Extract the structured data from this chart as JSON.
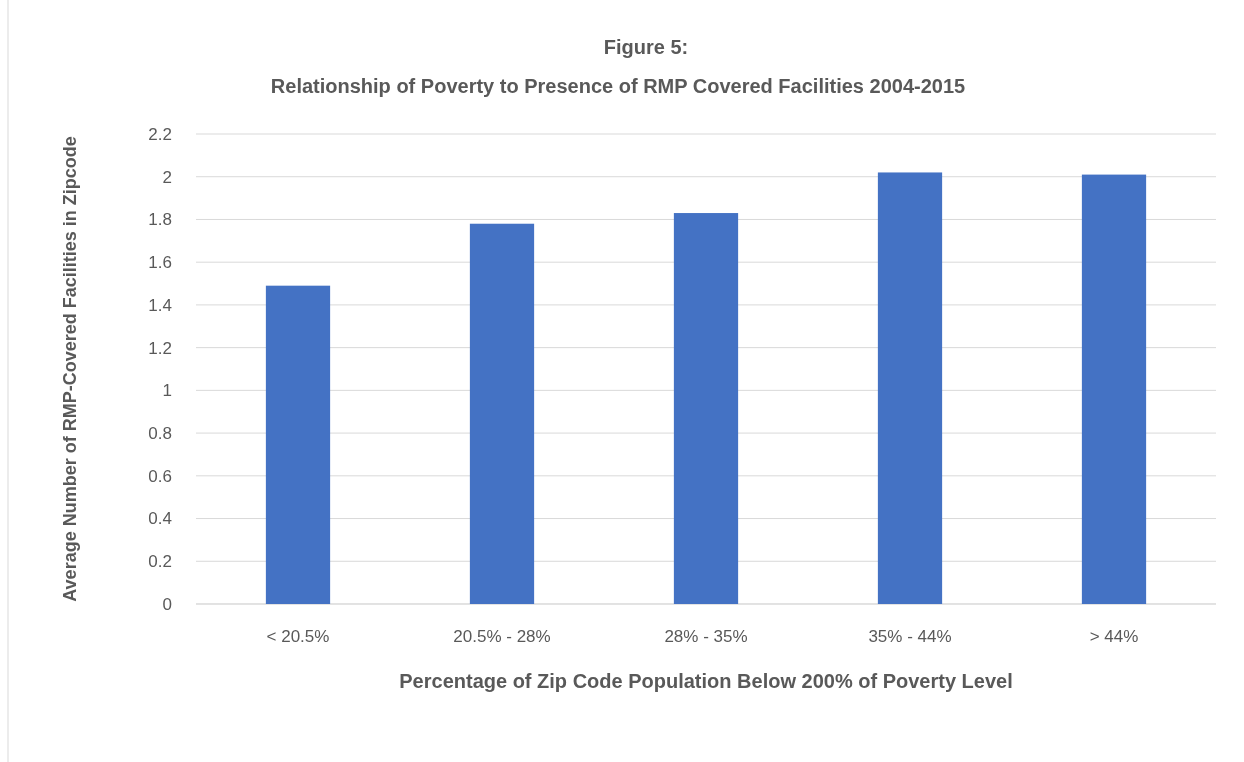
{
  "chart_data": {
    "type": "bar",
    "title": "Figure 5:",
    "subtitle": "Relationship of Poverty to Presence of RMP Covered Facilities 2004-2015",
    "xlabel": "Percentage of Zip Code Population Below 200% of Poverty Level",
    "ylabel": "Average Number of RMP-Covered Facilities in Zipcode",
    "categories": [
      "< 20.5%",
      "20.5% - 28%",
      "28% - 35%",
      "35% - 44%",
      "> 44%"
    ],
    "values": [
      1.49,
      1.78,
      1.83,
      2.02,
      2.01
    ],
    "color": "#4472c4",
    "ylim": [
      0,
      2.2
    ],
    "yticks": [
      0,
      {
        "value": 0.2,
        "label": "0.2"
      },
      {
        "value": 0.4,
        "label": "0.4"
      },
      {
        "value": 0.6,
        "label": "0.6"
      },
      {
        "value": 0.8,
        "label": "0.8"
      },
      1,
      {
        "value": 1.2,
        "label": "1.2"
      },
      {
        "value": 1.4,
        "label": "1.4"
      },
      {
        "value": 1.6,
        "label": "1.6"
      },
      {
        "value": 1.8,
        "label": "1.8"
      },
      2,
      {
        "value": 2.2,
        "label": "2.2"
      }
    ],
    "grid": "y"
  }
}
